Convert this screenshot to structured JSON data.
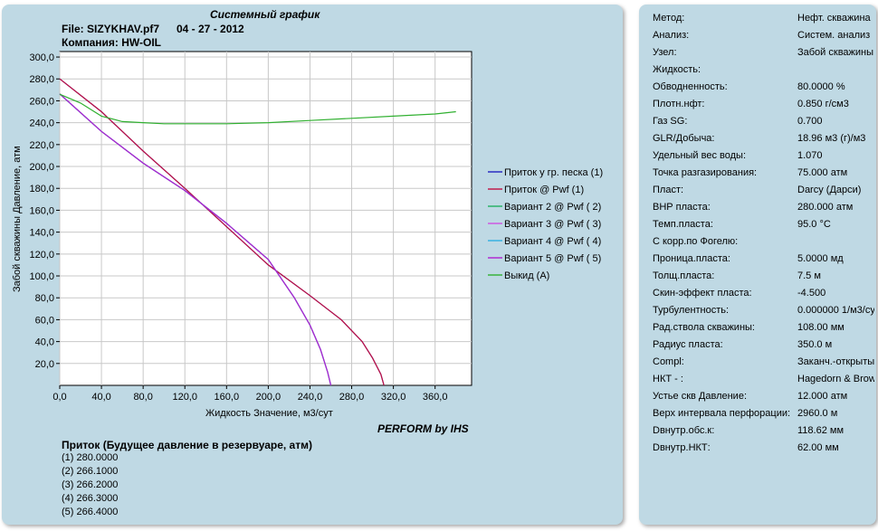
{
  "header": {
    "title": "Системный график",
    "file": "File: SIZYKHAV.pf7",
    "date": "04 - 27 - 2012",
    "company": "Компания: HW-OIL",
    "footer": "PERFORM by IHS"
  },
  "chart_data": {
    "type": "line",
    "xlabel": "Жидкость Значение, м3/сут",
    "ylabel": "Забой скважины Давление, атм",
    "xlim": [
      0,
      395
    ],
    "ylim": [
      0,
      305
    ],
    "xticks": [
      "0,0",
      "40,0",
      "80,0",
      "120,0",
      "160,0",
      "200,0",
      "240,0",
      "280,0",
      "320,0",
      "360,0"
    ],
    "yticks": [
      "20,0",
      "40,0",
      "60,0",
      "80,0",
      "100,0",
      "120,0",
      "140,0",
      "160,0",
      "180,0",
      "200,0",
      "220,0",
      "240,0",
      "260,0",
      "280,0",
      "300,0"
    ],
    "grid": true,
    "legend_position": "right",
    "series": [
      {
        "name": "Приток у гр. песка (1)",
        "color": "#2020c0",
        "x": [
          0,
          40,
          80,
          120,
          160,
          200,
          240,
          270,
          290,
          300,
          308,
          311
        ],
        "y": [
          280,
          250,
          214,
          180,
          145,
          110,
          82,
          60,
          40,
          25,
          10,
          0
        ]
      },
      {
        "name": "Приток @ Pwf (1)",
        "color": "#c01040",
        "x": [
          0,
          40,
          80,
          120,
          160,
          200,
          240,
          270,
          290,
          300,
          308,
          311
        ],
        "y": [
          280,
          250,
          214,
          180,
          145,
          110,
          82,
          60,
          40,
          25,
          10,
          0
        ]
      },
      {
        "name": "Вариант  2 @ Pwf ( 2)",
        "color": "#20b060",
        "x": [
          0,
          40,
          80,
          120,
          160,
          200,
          225,
          240,
          250,
          257,
          260
        ],
        "y": [
          266.1,
          232,
          203,
          178,
          148,
          115,
          80,
          55,
          33,
          12,
          0
        ]
      },
      {
        "name": "Вариант  3 @ Pwf ( 3)",
        "color": "#d050e0",
        "x": [
          0,
          40,
          80,
          120,
          160,
          200,
          225,
          240,
          250,
          257,
          260
        ],
        "y": [
          266.2,
          232,
          203,
          178,
          148,
          115,
          80,
          55,
          33,
          12,
          0
        ]
      },
      {
        "name": "Вариант  4 @ Pwf ( 4)",
        "color": "#30b0e0",
        "x": [
          0,
          40,
          80,
          120,
          160,
          200,
          225,
          240,
          250,
          257,
          260
        ],
        "y": [
          266.3,
          232,
          203,
          178,
          148,
          115,
          80,
          55,
          33,
          12,
          0
        ]
      },
      {
        "name": "Вариант  5 @ Pwf ( 5)",
        "color": "#b020d0",
        "x": [
          0,
          40,
          80,
          120,
          160,
          200,
          225,
          240,
          250,
          257,
          260
        ],
        "y": [
          266.4,
          232,
          203,
          178,
          148,
          115,
          80,
          55,
          33,
          12,
          0
        ]
      },
      {
        "name": "Выкид (A)",
        "color": "#30b030",
        "x": [
          0,
          20,
          40,
          60,
          80,
          100,
          140,
          160,
          200,
          240,
          280,
          320,
          360,
          380
        ],
        "y": [
          266,
          258,
          246,
          241,
          240,
          239,
          239,
          239,
          240,
          242,
          244,
          246,
          248,
          250
        ]
      }
    ]
  },
  "inflow": {
    "title": "Приток (Будущее давление в резервуаре,  атм)",
    "rows": [
      "(1)  280.0000",
      "(2)  266.1000",
      "(3)  266.2000",
      "(4)  266.3000",
      "(5)  266.4000"
    ]
  },
  "properties": [
    {
      "label": "Метод:",
      "value": "Нефт. скважина"
    },
    {
      "label": "Анализ:",
      "value": "Систем. анализ"
    },
    {
      "label": "Узел:",
      "value": "Забой скважины"
    },
    {
      "label": "Жидкость:",
      "value": ""
    },
    {
      "label": "Обводненность:",
      "value": "80.0000 %"
    },
    {
      "label": "Плотн.нфт:",
      "value": "0.850 г/см3"
    },
    {
      "label": "Газ SG:",
      "value": "0.700"
    },
    {
      "label": "GLR/Добыча:",
      "value": "18.96 м3 (г)/м3"
    },
    {
      "label": "Удельный вес воды:",
      "value": "1.070"
    },
    {
      "label": "Точка разгазирования:",
      "value": "75.000 атм"
    },
    {
      "label": "Пласт:",
      "value": "Darcy (Дарси)"
    },
    {
      "label": "ВНР пласта:",
      "value": "280.000 атм"
    },
    {
      "label": "Темп.пласта:",
      "value": "95.0 °C"
    },
    {
      "label": "С корр.по Фогелю:",
      "value": ""
    },
    {
      "label": "Проница.пласта:",
      "value": "5.0000 мд"
    },
    {
      "label": "Толщ.пласта:",
      "value": "7.5 м"
    },
    {
      "label": "Скин-эффект пласта:",
      "value": "-4.500"
    },
    {
      "label": "Турбулентность:",
      "value": "0.000000 1/м3/сут"
    },
    {
      "label": "Рад.ствола скважины:",
      "value": "108.00 мм"
    },
    {
      "label": "Радиус пласта:",
      "value": "350.0 м"
    },
    {
      "label": "Compl:",
      "value": "Заканч.-открытый"
    },
    {
      "label": "НКТ - :",
      "value": "Hagedorn & Brown"
    },
    {
      "label": "Устье скв Давление:",
      "value": "12.000 атм"
    },
    {
      "label": "Верх интервала перфорации:",
      "value": "2960.0 м"
    },
    {
      "label": "Dвнутр.обс.к:",
      "value": "118.62 мм"
    },
    {
      "label": "Dвнутр.НКТ:",
      "value": "62.00 мм"
    }
  ]
}
